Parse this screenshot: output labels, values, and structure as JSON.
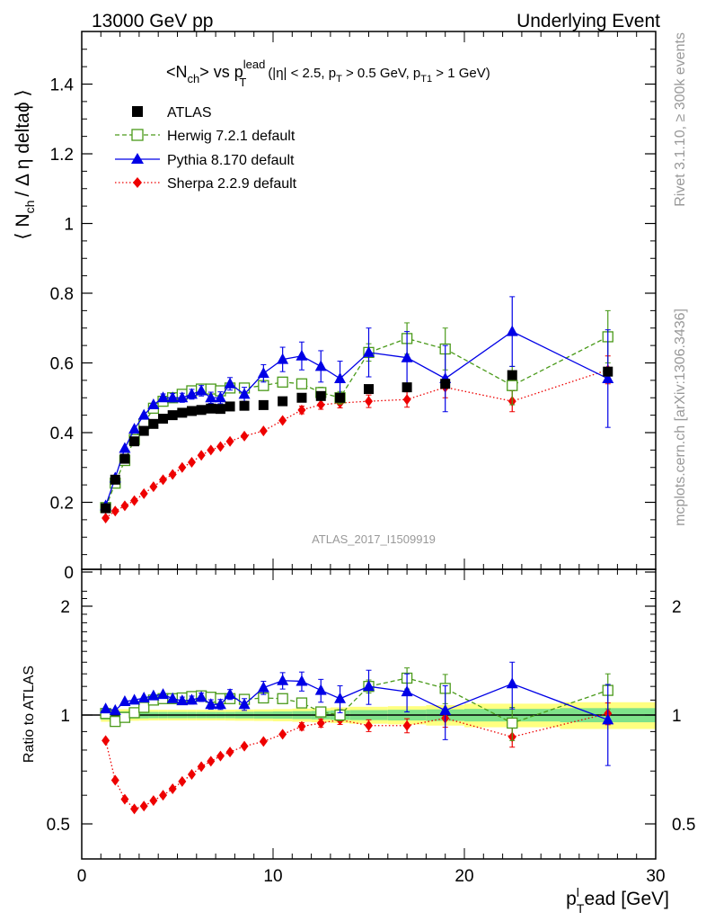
{
  "header": {
    "left": "13000 GeV pp",
    "right": "Underlying Event"
  },
  "side_labels": {
    "rivet": "Rivet 3.1.10, ≥ 300k events",
    "mcplots": "mcplots.cern.ch [arXiv:1306.3436]"
  },
  "colors": {
    "atlas": "#000000",
    "herwig": "#4a9a1a",
    "pythia": "#0000e6",
    "sherpa": "#ee0000",
    "band_inner": "#7fe28a",
    "band_outer": "#ffff80"
  },
  "chart_data": [
    {
      "type": "scatter",
      "panel": "main",
      "title_main": "<N",
      "title_sub1": "ch",
      "title_mid": "> vs p",
      "title_sup": "lead",
      "title_sub2": "T",
      "title_cuts": "(|η| < 2.5, p",
      "title_cuts_sub1": "T",
      "title_cuts_mid": " > 0.5 GeV, p",
      "title_cuts_sub2": "T1",
      "title_cuts_end": " > 1 GeV)",
      "ylabel_pre": "⟨ N",
      "ylabel_sub": "ch",
      "ylabel_post": "/ Δ η deltaϕ ⟩",
      "analysis_id": "ATLAS_2017_I1509919",
      "xlim": [
        0,
        30
      ],
      "ylim": [
        0,
        1.55
      ],
      "yticks": [
        "0",
        "0.2",
        "0.4",
        "0.6",
        "0.8",
        "1",
        "1.2",
        "1.4"
      ],
      "legend_position": "top-left",
      "series": [
        {
          "name": "ATLAS",
          "style": "marker-square-filled",
          "x": [
            1.25,
            1.75,
            2.25,
            2.75,
            3.25,
            3.75,
            4.25,
            4.75,
            5.25,
            5.75,
            6.25,
            6.75,
            7.25,
            7.75,
            8.5,
            9.5,
            10.5,
            11.5,
            12.5,
            13.5,
            15,
            17,
            19,
            22.5,
            27.5
          ],
          "y": [
            0.183,
            0.265,
            0.325,
            0.375,
            0.405,
            0.425,
            0.44,
            0.45,
            0.457,
            0.462,
            0.465,
            0.469,
            0.468,
            0.475,
            0.477,
            0.479,
            0.49,
            0.5,
            0.505,
            0.5,
            0.525,
            0.53,
            0.54,
            0.565,
            0.575
          ]
        },
        {
          "name": "Herwig 7.2.1 default",
          "style": "marker-square-open-dashed",
          "x": [
            1.25,
            1.75,
            2.25,
            2.75,
            3.25,
            3.75,
            4.25,
            4.75,
            5.25,
            5.75,
            6.25,
            6.75,
            7.25,
            7.75,
            8.5,
            9.5,
            10.5,
            11.5,
            12.5,
            13.5,
            15,
            17,
            19,
            22.5,
            27.5
          ],
          "y": [
            0.185,
            0.255,
            0.32,
            0.38,
            0.425,
            0.47,
            0.49,
            0.5,
            0.51,
            0.52,
            0.525,
            0.525,
            0.52,
            0.528,
            0.528,
            0.535,
            0.545,
            0.54,
            0.515,
            0.5,
            0.63,
            0.67,
            0.64,
            0.535,
            0.675
          ],
          "err": [
            0.005,
            0.005,
            0.005,
            0.005,
            0.005,
            0.005,
            0.005,
            0.005,
            0.005,
            0.005,
            0.006,
            0.006,
            0.006,
            0.007,
            0.008,
            0.009,
            0.011,
            0.012,
            0.015,
            0.018,
            0.025,
            0.045,
            0.06,
            0.055,
            0.075
          ]
        },
        {
          "name": "Pythia 8.170 default",
          "style": "marker-triangle-solid",
          "x": [
            1.25,
            1.75,
            2.25,
            2.75,
            3.25,
            3.75,
            4.25,
            4.75,
            5.25,
            5.75,
            6.25,
            6.75,
            7.25,
            7.75,
            8.5,
            9.5,
            10.5,
            11.5,
            12.5,
            13.5,
            15,
            17,
            19,
            22.5,
            27.5
          ],
          "y": [
            0.19,
            0.27,
            0.355,
            0.41,
            0.45,
            0.48,
            0.5,
            0.5,
            0.5,
            0.51,
            0.52,
            0.5,
            0.5,
            0.54,
            0.51,
            0.57,
            0.61,
            0.62,
            0.59,
            0.555,
            0.63,
            0.615,
            0.555,
            0.69,
            0.555
          ],
          "err": [
            0.005,
            0.006,
            0.007,
            0.008,
            0.009,
            0.01,
            0.011,
            0.012,
            0.013,
            0.014,
            0.015,
            0.016,
            0.017,
            0.018,
            0.02,
            0.025,
            0.035,
            0.04,
            0.045,
            0.05,
            0.07,
            0.075,
            0.095,
            0.1,
            0.14
          ]
        },
        {
          "name": "Sherpa 2.2.9 default",
          "style": "marker-diamond-dotted",
          "x": [
            1.25,
            1.75,
            2.25,
            2.75,
            3.25,
            3.75,
            4.25,
            4.75,
            5.25,
            5.75,
            6.25,
            6.75,
            7.25,
            7.75,
            8.5,
            9.5,
            10.5,
            11.5,
            12.5,
            13.5,
            15,
            17,
            19,
            22.5,
            27.5
          ],
          "y": [
            0.155,
            0.175,
            0.19,
            0.205,
            0.225,
            0.245,
            0.265,
            0.28,
            0.3,
            0.315,
            0.335,
            0.35,
            0.36,
            0.375,
            0.39,
            0.405,
            0.435,
            0.465,
            0.48,
            0.485,
            0.49,
            0.495,
            0.53,
            0.49,
            0.58
          ],
          "err": [
            0.003,
            0.003,
            0.003,
            0.003,
            0.003,
            0.004,
            0.004,
            0.004,
            0.004,
            0.004,
            0.005,
            0.005,
            0.005,
            0.006,
            0.007,
            0.008,
            0.01,
            0.011,
            0.013,
            0.014,
            0.018,
            0.022,
            0.03,
            0.03,
            0.04
          ]
        }
      ]
    },
    {
      "type": "scatter",
      "panel": "ratio",
      "ylabel": "Ratio to ATLAS",
      "xlabel_pre": "p",
      "xlabel_sup": "l",
      "xlabel_sub": "T",
      "xlabel_post": "ead [GeV]",
      "xlim": [
        0,
        30
      ],
      "ylim": [
        0.4,
        2.3
      ],
      "yscale": "log",
      "yticks": [
        "0.5",
        "1",
        "2"
      ],
      "xticks": [
        "0",
        "10",
        "20",
        "30"
      ],
      "band_x_edges": [
        1.0,
        1.5,
        2.0,
        2.5,
        3.0,
        3.5,
        4.0,
        4.5,
        5.0,
        5.5,
        6.0,
        6.5,
        7.0,
        7.5,
        8.0,
        9.0,
        10.0,
        11.0,
        12.0,
        13.0,
        14.0,
        16.0,
        18.0,
        20.0,
        25.0,
        30.0
      ],
      "band_inner_half": [
        0.028,
        0.025,
        0.023,
        0.022,
        0.021,
        0.02,
        0.02,
        0.02,
        0.02,
        0.02,
        0.02,
        0.02,
        0.02,
        0.02,
        0.021,
        0.022,
        0.023,
        0.025,
        0.027,
        0.03,
        0.032,
        0.034,
        0.037,
        0.04,
        0.045
      ],
      "band_outer_half": [
        0.042,
        0.04,
        0.038,
        0.036,
        0.035,
        0.034,
        0.034,
        0.034,
        0.034,
        0.034,
        0.034,
        0.034,
        0.034,
        0.035,
        0.036,
        0.037,
        0.039,
        0.042,
        0.045,
        0.05,
        0.054,
        0.058,
        0.065,
        0.075,
        0.085
      ],
      "series": [
        {
          "name": "Herwig 7.2.1 default",
          "x": [
            1.25,
            1.75,
            2.25,
            2.75,
            3.25,
            3.75,
            4.25,
            4.75,
            5.25,
            5.75,
            6.25,
            6.75,
            7.25,
            7.75,
            8.5,
            9.5,
            10.5,
            11.5,
            12.5,
            13.5,
            15,
            17,
            19,
            22.5,
            27.5
          ],
          "y": [
            1.01,
            0.96,
            0.985,
            1.015,
            1.05,
            1.1,
            1.11,
            1.11,
            1.115,
            1.125,
            1.13,
            1.12,
            1.11,
            1.11,
            1.105,
            1.115,
            1.11,
            1.08,
            1.02,
            1.0,
            1.2,
            1.265,
            1.185,
            0.95,
            1.17
          ],
          "err": [
            0.01,
            0.01,
            0.01,
            0.01,
            0.01,
            0.01,
            0.01,
            0.01,
            0.01,
            0.011,
            0.012,
            0.013,
            0.013,
            0.014,
            0.016,
            0.018,
            0.022,
            0.024,
            0.03,
            0.035,
            0.05,
            0.085,
            0.11,
            0.1,
            0.13
          ]
        },
        {
          "name": "Pythia 8.170 default",
          "x": [
            1.25,
            1.75,
            2.25,
            2.75,
            3.25,
            3.75,
            4.25,
            4.75,
            5.25,
            5.75,
            6.25,
            6.75,
            7.25,
            7.75,
            8.5,
            9.5,
            10.5,
            11.5,
            12.5,
            13.5,
            15,
            17,
            19,
            22.5,
            27.5
          ],
          "y": [
            1.04,
            1.03,
            1.09,
            1.1,
            1.115,
            1.13,
            1.14,
            1.11,
            1.095,
            1.1,
            1.12,
            1.07,
            1.07,
            1.14,
            1.07,
            1.19,
            1.245,
            1.24,
            1.17,
            1.11,
            1.2,
            1.16,
            1.03,
            1.22,
            0.97
          ],
          "err": [
            0.01,
            0.012,
            0.014,
            0.016,
            0.018,
            0.02,
            0.022,
            0.024,
            0.026,
            0.028,
            0.03,
            0.032,
            0.034,
            0.036,
            0.04,
            0.05,
            0.065,
            0.075,
            0.085,
            0.095,
            0.13,
            0.14,
            0.175,
            0.18,
            0.245
          ]
        },
        {
          "name": "Sherpa 2.2.9 default",
          "x": [
            1.25,
            1.75,
            2.25,
            2.75,
            3.25,
            3.75,
            4.25,
            4.75,
            5.25,
            5.75,
            6.25,
            6.75,
            7.25,
            7.75,
            8.5,
            9.5,
            10.5,
            11.5,
            12.5,
            13.5,
            15,
            17,
            19,
            22.5,
            27.5
          ],
          "y": [
            0.85,
            0.66,
            0.585,
            0.55,
            0.56,
            0.58,
            0.6,
            0.625,
            0.655,
            0.685,
            0.72,
            0.745,
            0.77,
            0.79,
            0.82,
            0.845,
            0.885,
            0.93,
            0.95,
            0.97,
            0.935,
            0.935,
            0.98,
            0.87,
            1.01
          ],
          "err": [
            0.01,
            0.01,
            0.01,
            0.01,
            0.01,
            0.01,
            0.01,
            0.01,
            0.01,
            0.01,
            0.01,
            0.01,
            0.01,
            0.012,
            0.014,
            0.016,
            0.02,
            0.022,
            0.025,
            0.028,
            0.035,
            0.042,
            0.055,
            0.055,
            0.07
          ]
        }
      ]
    }
  ]
}
